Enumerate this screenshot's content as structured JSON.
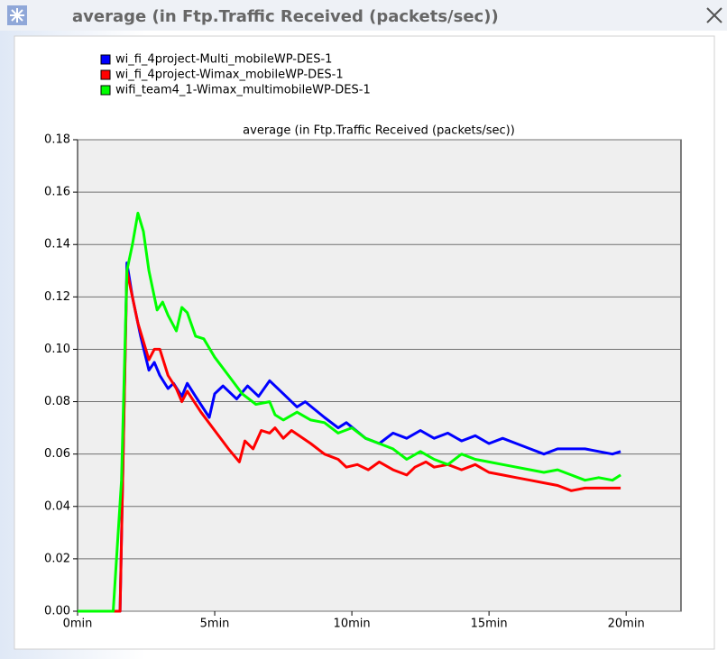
{
  "window": {
    "title": "average (in Ftp.Traffic Received (packets/sec))"
  },
  "chart_data": {
    "type": "line",
    "title": "average (in Ftp.Traffic Received (packets/sec))",
    "xlim": [
      0,
      22
    ],
    "xticks": [
      {
        "value": 0,
        "label": "0min"
      },
      {
        "value": 5,
        "label": "5min"
      },
      {
        "value": 10,
        "label": "10min"
      },
      {
        "value": 15,
        "label": "15min"
      },
      {
        "value": 20,
        "label": "20min"
      }
    ],
    "ylim": [
      0,
      0.18
    ],
    "yticks": [
      {
        "value": 0,
        "label": "0.00"
      },
      {
        "value": 0.02,
        "label": "0.02"
      },
      {
        "value": 0.04,
        "label": "0.04"
      },
      {
        "value": 0.06,
        "label": "0.06"
      },
      {
        "value": 0.08,
        "label": "0.08"
      },
      {
        "value": 0.1,
        "label": "0.10"
      },
      {
        "value": 0.12,
        "label": "0.12"
      },
      {
        "value": 0.14,
        "label": "0.14"
      },
      {
        "value": 0.16,
        "label": "0.16"
      },
      {
        "value": 0.18,
        "label": "0.18"
      }
    ],
    "grid": true,
    "legend": "top-left",
    "series": [
      {
        "name": "wi_fi_4project-Multi_mobileWP-DES-1",
        "color": "#0000ff",
        "x": [
          0,
          1.55,
          1.8,
          2.0,
          2.3,
          2.6,
          2.8,
          3.0,
          3.3,
          3.5,
          3.8,
          4.0,
          4.3,
          4.8,
          5.0,
          5.3,
          5.8,
          6.2,
          6.6,
          7.0,
          7.5,
          8.0,
          8.3,
          9.0,
          9.5,
          9.8,
          10.5,
          11.0,
          11.5,
          12.0,
          12.5,
          13.0,
          13.5,
          14.0,
          14.5,
          15.0,
          15.5,
          16.0,
          16.5,
          17.0,
          17.5,
          18.0,
          18.5,
          19.0,
          19.5,
          19.8
        ],
        "values": [
          0,
          0,
          0.133,
          0.12,
          0.105,
          0.092,
          0.095,
          0.09,
          0.085,
          0.087,
          0.082,
          0.087,
          0.082,
          0.074,
          0.083,
          0.086,
          0.081,
          0.086,
          0.082,
          0.088,
          0.083,
          0.078,
          0.08,
          0.074,
          0.07,
          0.072,
          0.066,
          0.064,
          0.068,
          0.066,
          0.069,
          0.066,
          0.068,
          0.065,
          0.067,
          0.064,
          0.066,
          0.064,
          0.062,
          0.06,
          0.062,
          0.062,
          0.062,
          0.061,
          0.06,
          0.061
        ]
      },
      {
        "name": "wi_fi_4project-Wimax_mobileWP-DES-1",
        "color": "#ff0000",
        "x": [
          0,
          1.55,
          1.8,
          2.2,
          2.6,
          2.8,
          3.0,
          3.3,
          3.6,
          3.8,
          4.0,
          4.5,
          5.0,
          5.5,
          5.9,
          6.1,
          6.4,
          6.7,
          7.0,
          7.2,
          7.5,
          7.8,
          8.5,
          9.0,
          9.5,
          9.8,
          10.2,
          10.6,
          11.0,
          11.5,
          12.0,
          12.3,
          12.7,
          13.0,
          13.5,
          14.0,
          14.5,
          15.0,
          15.5,
          16.0,
          16.5,
          17.0,
          17.5,
          18.0,
          18.5,
          19.0,
          19.5,
          19.8
        ],
        "values": [
          0,
          0,
          0.13,
          0.11,
          0.096,
          0.1,
          0.1,
          0.09,
          0.085,
          0.08,
          0.084,
          0.076,
          0.069,
          0.062,
          0.057,
          0.065,
          0.062,
          0.069,
          0.068,
          0.07,
          0.066,
          0.069,
          0.064,
          0.06,
          0.058,
          0.055,
          0.056,
          0.054,
          0.057,
          0.054,
          0.052,
          0.055,
          0.057,
          0.055,
          0.056,
          0.054,
          0.056,
          0.053,
          0.052,
          0.051,
          0.05,
          0.049,
          0.048,
          0.046,
          0.047,
          0.047,
          0.047,
          0.047
        ]
      },
      {
        "name": "wifi_team4_1-Wimax_multimobileWP-DES-1",
        "color": "#00ff00",
        "x": [
          0,
          1.3,
          1.6,
          1.8,
          2.0,
          2.2,
          2.4,
          2.6,
          2.9,
          3.1,
          3.3,
          3.6,
          3.8,
          4.0,
          4.3,
          4.6,
          5.0,
          5.5,
          6.0,
          6.5,
          7.0,
          7.2,
          7.5,
          8.0,
          8.5,
          9.0,
          9.5,
          10.0,
          10.5,
          11.0,
          11.5,
          12.0,
          12.5,
          13.0,
          13.5,
          14.0,
          14.5,
          15.0,
          15.5,
          16.0,
          16.5,
          17.0,
          17.5,
          18.0,
          18.5,
          19.0,
          19.5,
          19.8
        ],
        "values": [
          0,
          0,
          0.05,
          0.13,
          0.14,
          0.152,
          0.145,
          0.13,
          0.115,
          0.118,
          0.113,
          0.107,
          0.116,
          0.114,
          0.105,
          0.104,
          0.097,
          0.09,
          0.083,
          0.079,
          0.08,
          0.075,
          0.073,
          0.076,
          0.073,
          0.072,
          0.068,
          0.07,
          0.066,
          0.064,
          0.062,
          0.058,
          0.061,
          0.058,
          0.056,
          0.06,
          0.058,
          0.057,
          0.056,
          0.055,
          0.054,
          0.053,
          0.054,
          0.052,
          0.05,
          0.051,
          0.05,
          0.052
        ]
      }
    ]
  }
}
